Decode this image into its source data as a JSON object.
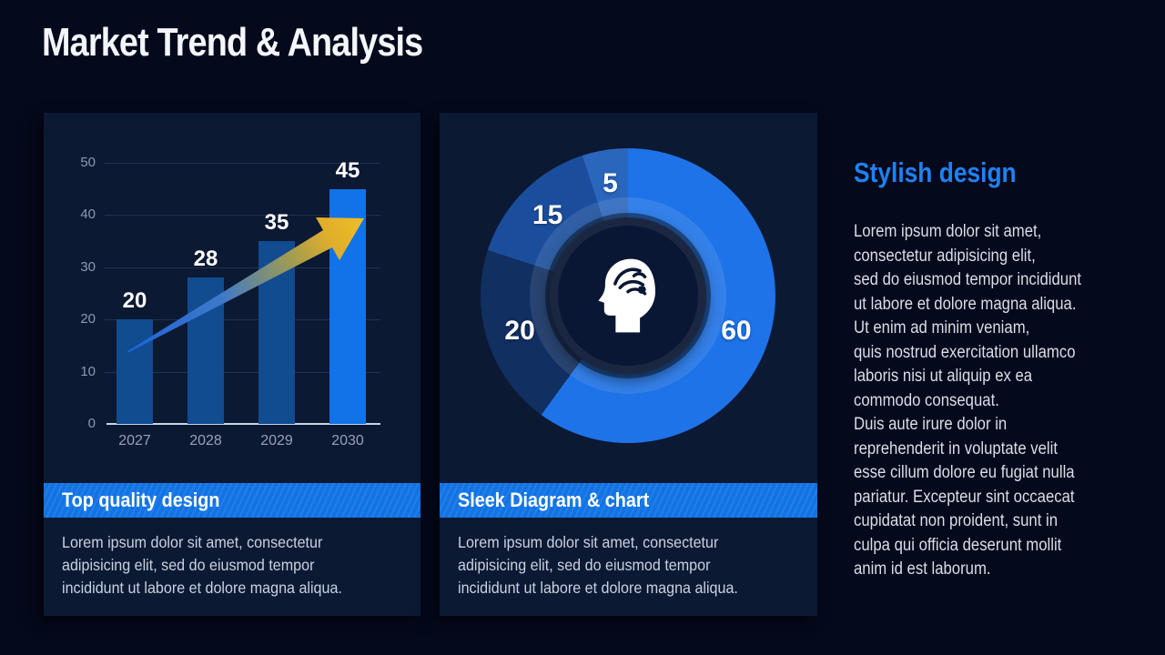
{
  "slide": {
    "title": "Market Trend & Analysis"
  },
  "aside": {
    "heading": "Stylish design",
    "body": "Lorem ipsum dolor sit amet,\nconsectetur adipisicing elit,\nsed do eiusmod tempor incididunt\nut labore et dolore magna aliqua.\nUt enim ad minim veniam,\nquis nostrud exercitation ullamco\nlaboris nisi ut aliquip ex ea\ncommodo consequat.\nDuis aute irure dolor in\nreprehenderit in voluptate velit\nesse cillum dolore eu fugiat nulla\npariatur. Excepteur sint occaecat\ncupidatat non proident, sunt in\nculpa qui officia deserunt mollit\nanim id est laborum."
  },
  "cards": [
    {
      "title": "Top quality design",
      "body": "Lorem ipsum dolor sit amet, consectetur\nadipisicing elit, sed do eiusmod tempor\nincididunt ut labore et dolore magna aliqua."
    },
    {
      "title": "Sleek Diagram & chart",
      "body": "Lorem ipsum dolor sit amet, consectetur\nadipisicing elit, sed do eiusmod tempor\nincididunt ut labore et dolore magna aliqua."
    }
  ],
  "colors": {
    "background": "#04091B",
    "panel": "#0C1933",
    "banner_blue": "#1173E4",
    "accent_blue": "#1E82F5",
    "bar_default": "#114B90",
    "bar_highlight": "#1173E8",
    "arrow_start": "#2063D8",
    "arrow_end": "#F0BE25"
  },
  "chart_data": [
    {
      "type": "bar",
      "title": "",
      "categories": [
        "2027",
        "2028",
        "2029",
        "2030"
      ],
      "values": [
        20,
        28,
        35,
        45
      ],
      "value_labels": [
        "20",
        "28",
        "35",
        "45"
      ],
      "xlabel": "",
      "ylabel": "",
      "ylim": [
        0,
        50
      ],
      "yticks": [
        0,
        10,
        20,
        30,
        40,
        50
      ],
      "grid": true,
      "legend": "none",
      "bar_colors": [
        "#114B90",
        "#114B90",
        "#114B90",
        "#1173E8"
      ],
      "annotation": "upward trend arrow from first bar to last bar, blue-to-gold gradient"
    },
    {
      "type": "pie",
      "subtype": "donut",
      "direction": "clockwise",
      "start_angle_deg": 0,
      "values": [
        60,
        20,
        15,
        5
      ],
      "labels": [
        "60",
        "20",
        "15",
        "5"
      ],
      "colors": [
        "#1E73E8",
        "#112F61",
        "#1A4E9C",
        "#2B66BD"
      ],
      "inner_ring_highlight": "rgba(255,255,255,0.10)",
      "center_icon": "head-brain-icon",
      "legend": "none"
    }
  ]
}
